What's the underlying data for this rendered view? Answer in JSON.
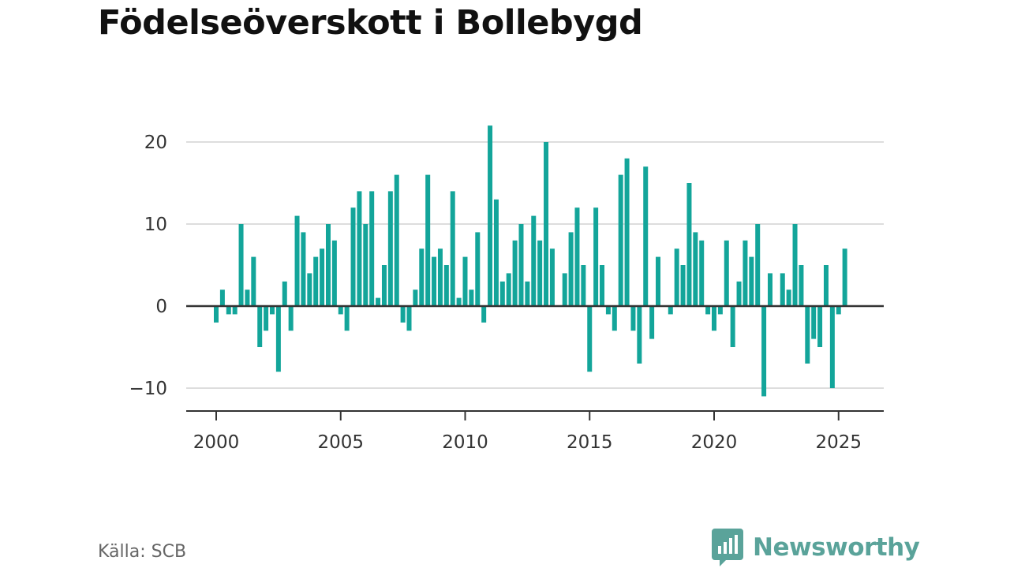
{
  "title": "Födelseöverskott i Bollebygd",
  "source": "Källa: SCB",
  "brand": {
    "name": "Newsworthy",
    "icon": "newsworthy-logo-icon",
    "color": "#5aa39a"
  },
  "colors": {
    "bar": "#13a59a",
    "grid": "#dddddd",
    "zero": "#333333",
    "axis": "#333333"
  },
  "chart_data": {
    "type": "bar",
    "title": "",
    "xlabel": "",
    "ylabel": "",
    "ylim": [
      -12,
      22.5
    ],
    "xlim": [
      1999.6,
      2025.9
    ],
    "grid": true,
    "yticks": [
      -10,
      0,
      10,
      20
    ],
    "ytick_labels": [
      "−10",
      "0",
      "10",
      "20"
    ],
    "xticks": [
      2000,
      2005,
      2010,
      2015,
      2020,
      2025
    ],
    "xtick_labels": [
      "2000",
      "2005",
      "2010",
      "2015",
      "2020",
      "2025"
    ],
    "series": [
      {
        "x": [
          "2000-Q1",
          "2000-Q2",
          "2000-Q3",
          "2000-Q4",
          "2001-Q1",
          "2001-Q2",
          "2001-Q3",
          "2001-Q4",
          "2002-Q1",
          "2002-Q2",
          "2002-Q3",
          "2002-Q4",
          "2003-Q1",
          "2003-Q2",
          "2003-Q3",
          "2003-Q4",
          "2004-Q1",
          "2004-Q2",
          "2004-Q3",
          "2004-Q4",
          "2005-Q1",
          "2005-Q2",
          "2005-Q3",
          "2005-Q4",
          "2006-Q1",
          "2006-Q2",
          "2006-Q3",
          "2006-Q4",
          "2007-Q1",
          "2007-Q2",
          "2007-Q3",
          "2007-Q4",
          "2008-Q1",
          "2008-Q2",
          "2008-Q3",
          "2008-Q4",
          "2009-Q1",
          "2009-Q2",
          "2009-Q3",
          "2009-Q4",
          "2010-Q1",
          "2010-Q2",
          "2010-Q3",
          "2010-Q4",
          "2011-Q1",
          "2011-Q2",
          "2011-Q3",
          "2011-Q4",
          "2012-Q1",
          "2012-Q2",
          "2012-Q3",
          "2012-Q4",
          "2013-Q1",
          "2013-Q2",
          "2013-Q3",
          "2013-Q4",
          "2014-Q1",
          "2014-Q2",
          "2014-Q3",
          "2014-Q4",
          "2015-Q1",
          "2015-Q2",
          "2015-Q3",
          "2015-Q4",
          "2016-Q1",
          "2016-Q2",
          "2016-Q3",
          "2016-Q4",
          "2017-Q1",
          "2017-Q2",
          "2017-Q3",
          "2017-Q4",
          "2018-Q1",
          "2018-Q2",
          "2018-Q3",
          "2018-Q4",
          "2019-Q1",
          "2019-Q2",
          "2019-Q3",
          "2019-Q4",
          "2020-Q1",
          "2020-Q2",
          "2020-Q3",
          "2020-Q4",
          "2021-Q1",
          "2021-Q2",
          "2021-Q3",
          "2021-Q4",
          "2022-Q1",
          "2022-Q2",
          "2022-Q3",
          "2022-Q4",
          "2023-Q1",
          "2023-Q2",
          "2023-Q3",
          "2023-Q4",
          "2024-Q1",
          "2024-Q2",
          "2024-Q3",
          "2024-Q4",
          "2025-Q1",
          "2025-Q2"
        ],
        "values": [
          -2,
          2,
          -1,
          -1,
          10,
          2,
          6,
          -5,
          -3,
          -1,
          -8,
          3,
          -3,
          11,
          9,
          4,
          6,
          7,
          10,
          8,
          -1,
          -3,
          12,
          14,
          10,
          14,
          1,
          5,
          14,
          16,
          -2,
          -3,
          2,
          7,
          16,
          6,
          7,
          5,
          14,
          1,
          6,
          2,
          9,
          -2,
          22,
          13,
          3,
          4,
          8,
          10,
          3,
          11,
          8,
          20,
          7,
          0,
          4,
          9,
          12,
          5,
          -8,
          12,
          5,
          -1,
          -3,
          16,
          18,
          -3,
          -7,
          17,
          -4,
          6,
          0,
          -1,
          7,
          5,
          15,
          9,
          8,
          -1,
          -3,
          -1,
          8,
          -5,
          3,
          8,
          6,
          10,
          -11,
          4,
          0,
          4,
          2,
          10,
          5,
          -7,
          -4,
          -5,
          5,
          -10,
          -1,
          7
        ]
      }
    ]
  }
}
